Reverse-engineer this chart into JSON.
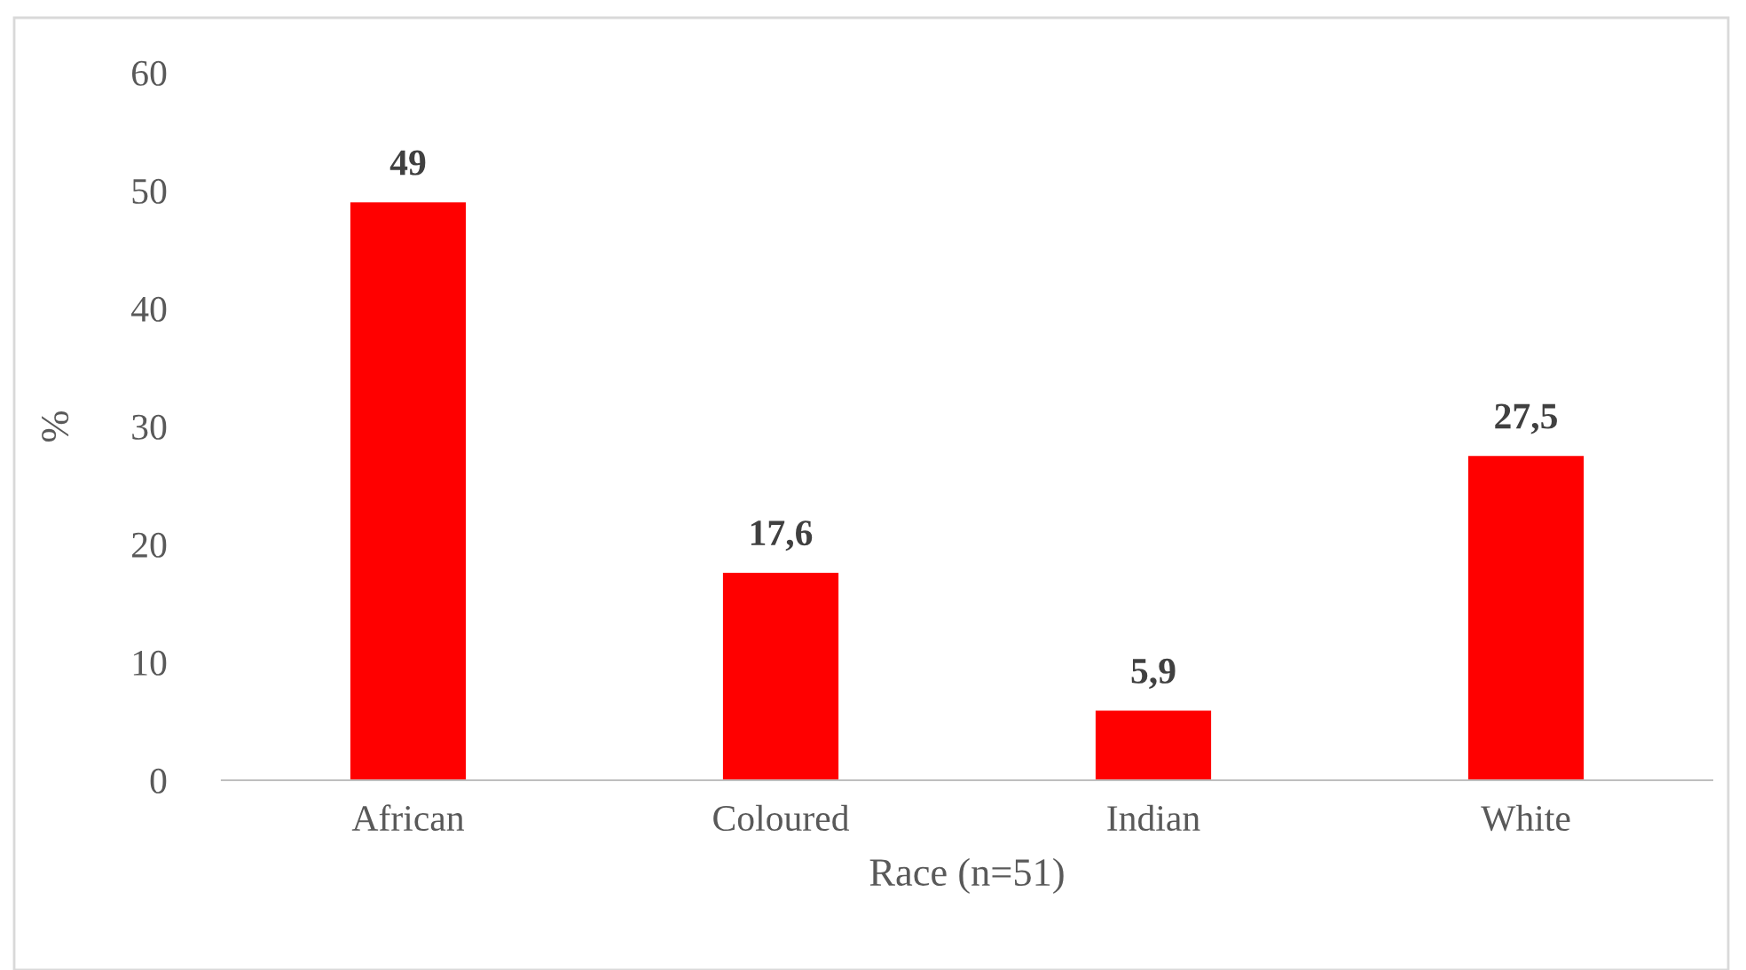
{
  "chart_data": {
    "type": "bar",
    "xlabel": "Race (n=51)",
    "ylabel": "%",
    "categories": [
      "African",
      "Coloured",
      "Indian",
      "White"
    ],
    "values": [
      49,
      17.6,
      5.9,
      27.5
    ],
    "value_labels": [
      "49",
      "17,6",
      "5,9",
      "27,5"
    ],
    "color": "#ff0000",
    "ylim": [
      0,
      60
    ],
    "yticks": [
      0,
      10,
      20,
      30,
      40,
      50,
      60
    ],
    "grid": false,
    "legend": false
  }
}
